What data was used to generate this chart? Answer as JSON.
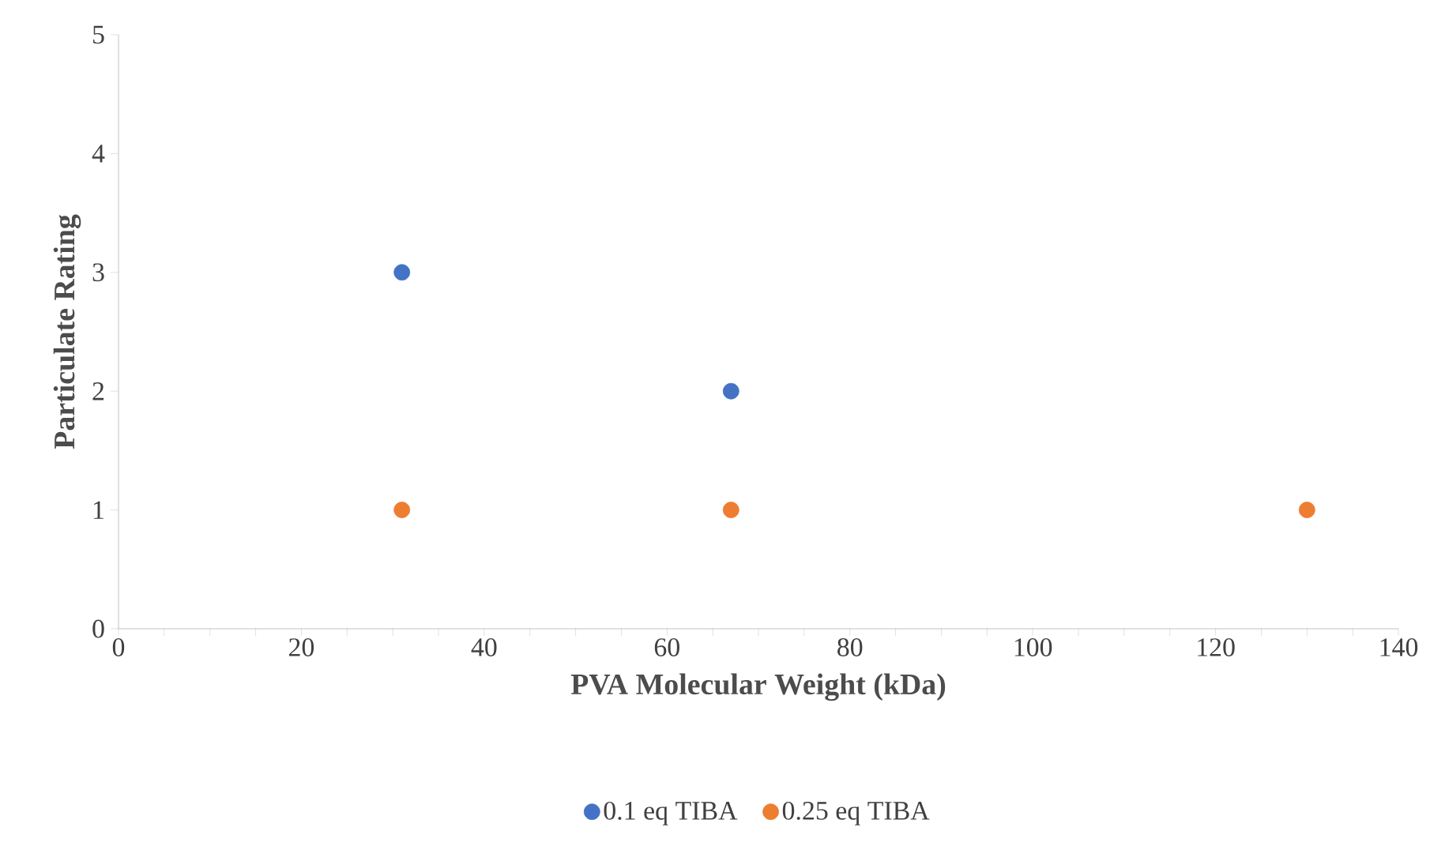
{
  "chart_data": {
    "type": "scatter",
    "xlabel": "PVA Molecular Weight (kDa)",
    "ylabel": "Particulate Rating",
    "x": [
      31,
      67,
      130
    ],
    "series": [
      {
        "name": "0.1 eq TIBA",
        "color": "#4472c4",
        "values": [
          3,
          2,
          null
        ]
      },
      {
        "name": "0.25 eq TIBA",
        "color": "#ed7d31",
        "values": [
          1,
          1,
          1
        ]
      }
    ],
    "xlim": [
      0,
      140
    ],
    "xticks": [
      0,
      20,
      40,
      60,
      80,
      100,
      120,
      140
    ],
    "ylim": [
      0,
      5
    ],
    "yticks": [
      0,
      1,
      2,
      3,
      4,
      5
    ],
    "legend": "bottom",
    "marker": "circle"
  }
}
